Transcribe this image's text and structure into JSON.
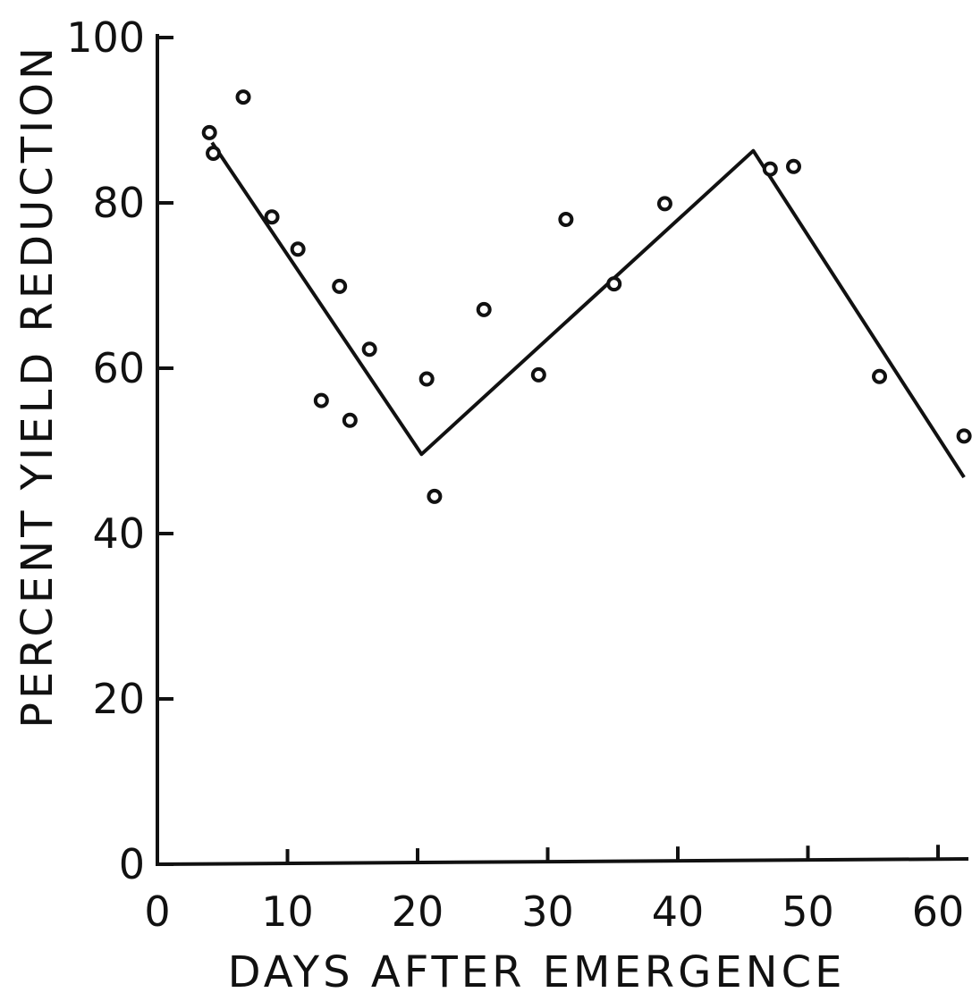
{
  "chart_data": {
    "type": "scatter",
    "title": "",
    "xlabel": "DAYS AFTER EMERGENCE",
    "ylabel": "PERCENT YIELD REDUCTION",
    "xlim": [
      0,
      62
    ],
    "ylim": [
      0,
      100
    ],
    "x_ticks": [
      0,
      10,
      20,
      30,
      40,
      50,
      60
    ],
    "x_tick_labels": [
      "0",
      "10",
      "20",
      "30",
      "40",
      "50",
      "60"
    ],
    "y_ticks": [
      0,
      20,
      40,
      60,
      80,
      100
    ],
    "y_tick_labels": [
      "0",
      "20",
      "40",
      "60",
      "80",
      "100"
    ],
    "grid": false,
    "legend": "none",
    "series": [
      {
        "type": "scatter",
        "marker": "open-circle",
        "points": [
          {
            "x": 4.0,
            "y": 88.5
          },
          {
            "x": 4.3,
            "y": 86.0
          },
          {
            "x": 6.6,
            "y": 92.8
          },
          {
            "x": 8.8,
            "y": 78.3
          },
          {
            "x": 10.8,
            "y": 74.4
          },
          {
            "x": 12.6,
            "y": 56.1
          },
          {
            "x": 14.0,
            "y": 69.9
          },
          {
            "x": 14.8,
            "y": 53.7
          },
          {
            "x": 16.3,
            "y": 62.3
          },
          {
            "x": 20.7,
            "y": 58.7
          },
          {
            "x": 21.3,
            "y": 44.5
          },
          {
            "x": 25.1,
            "y": 67.1
          },
          {
            "x": 29.3,
            "y": 59.2
          },
          {
            "x": 31.4,
            "y": 78.0
          },
          {
            "x": 35.1,
            "y": 70.2
          },
          {
            "x": 39.0,
            "y": 79.9
          },
          {
            "x": 47.1,
            "y": 84.1
          },
          {
            "x": 48.9,
            "y": 84.4
          },
          {
            "x": 55.5,
            "y": 59.0
          },
          {
            "x": 62.0,
            "y": 51.8
          }
        ]
      },
      {
        "type": "line",
        "style": "solid",
        "points": [
          {
            "x": 4.2,
            "y": 87.3
          },
          {
            "x": 20.3,
            "y": 49.6
          },
          {
            "x": 45.8,
            "y": 86.3
          },
          {
            "x": 62.0,
            "y": 46.8
          }
        ]
      }
    ]
  }
}
